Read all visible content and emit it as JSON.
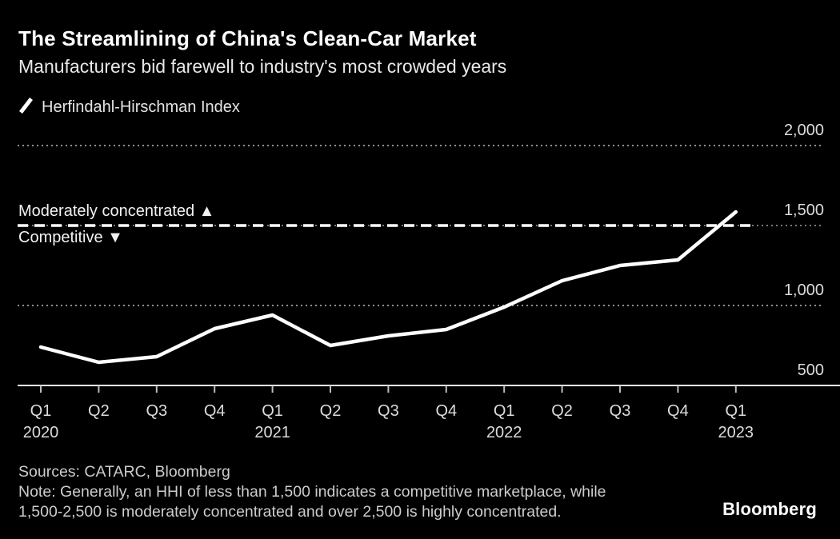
{
  "header": {
    "title": "The Streamlining of China's Clean-Car Market",
    "subtitle": "Manufacturers bid farewell to industry's most crowded years"
  },
  "legend": {
    "icon": "diagonal-line-icon",
    "series_label": "Herfindahl-Hirschman Index"
  },
  "chart_data": {
    "type": "line",
    "title": "The Streamlining of China's Clean-Car Market",
    "subtitle": "Manufacturers bid farewell to industry's most crowded years",
    "categories": [
      "Q1 2020",
      "Q2 2020",
      "Q3 2020",
      "Q4 2020",
      "Q1 2021",
      "Q2 2021",
      "Q3 2021",
      "Q4 2021",
      "Q1 2022",
      "Q2 2022",
      "Q3 2022",
      "Q4 2022",
      "Q1 2023"
    ],
    "series": [
      {
        "name": "Herfindahl-Hirschman Index",
        "values": [
          740,
          645,
          680,
          855,
          940,
          750,
          810,
          850,
          990,
          1155,
          1250,
          1285,
          1585
        ]
      }
    ],
    "x_ticks": [
      {
        "q": "Q1",
        "year": "2020"
      },
      {
        "q": "Q2",
        "year": ""
      },
      {
        "q": "Q3",
        "year": ""
      },
      {
        "q": "Q4",
        "year": ""
      },
      {
        "q": "Q1",
        "year": "2021"
      },
      {
        "q": "Q2",
        "year": ""
      },
      {
        "q": "Q3",
        "year": ""
      },
      {
        "q": "Q4",
        "year": ""
      },
      {
        "q": "Q1",
        "year": "2022"
      },
      {
        "q": "Q2",
        "year": ""
      },
      {
        "q": "Q3",
        "year": ""
      },
      {
        "q": "Q4",
        "year": ""
      },
      {
        "q": "Q1",
        "year": "2023"
      }
    ],
    "y_ticks": [
      {
        "label": "2,000",
        "value": 2000
      },
      {
        "label": "1,500",
        "value": 1500
      },
      {
        "label": "1,000",
        "value": 1000
      },
      {
        "label": "500",
        "value": 500
      }
    ],
    "ylim": [
      500,
      2100
    ],
    "grid": "dotted horizontal gridlines",
    "legend_position": "top-left",
    "threshold_line": {
      "value": 1500,
      "style": "dashed white",
      "label_above": "Moderately concentrated ▲",
      "label_below": "Competitive ▼"
    },
    "line_color": "#ffffff",
    "background_color": "#000000"
  },
  "footer": {
    "sources": "Sources: CATARC, Bloomberg",
    "note_line1": "Note: Generally, an HHI of less than 1,500 indicates a competitive marketplace, while",
    "note_line2": "1,500-2,500 is moderately concentrated and over 2,500 is highly concentrated.",
    "brand": "Bloomberg"
  },
  "colors": {
    "background": "#000000",
    "line": "#ffffff",
    "gridline": "#8f8f8f",
    "axis": "#ededed",
    "text_primary": "#ffffff",
    "text_secondary": "#dcdcdc",
    "footer_text": "#cccccc"
  }
}
